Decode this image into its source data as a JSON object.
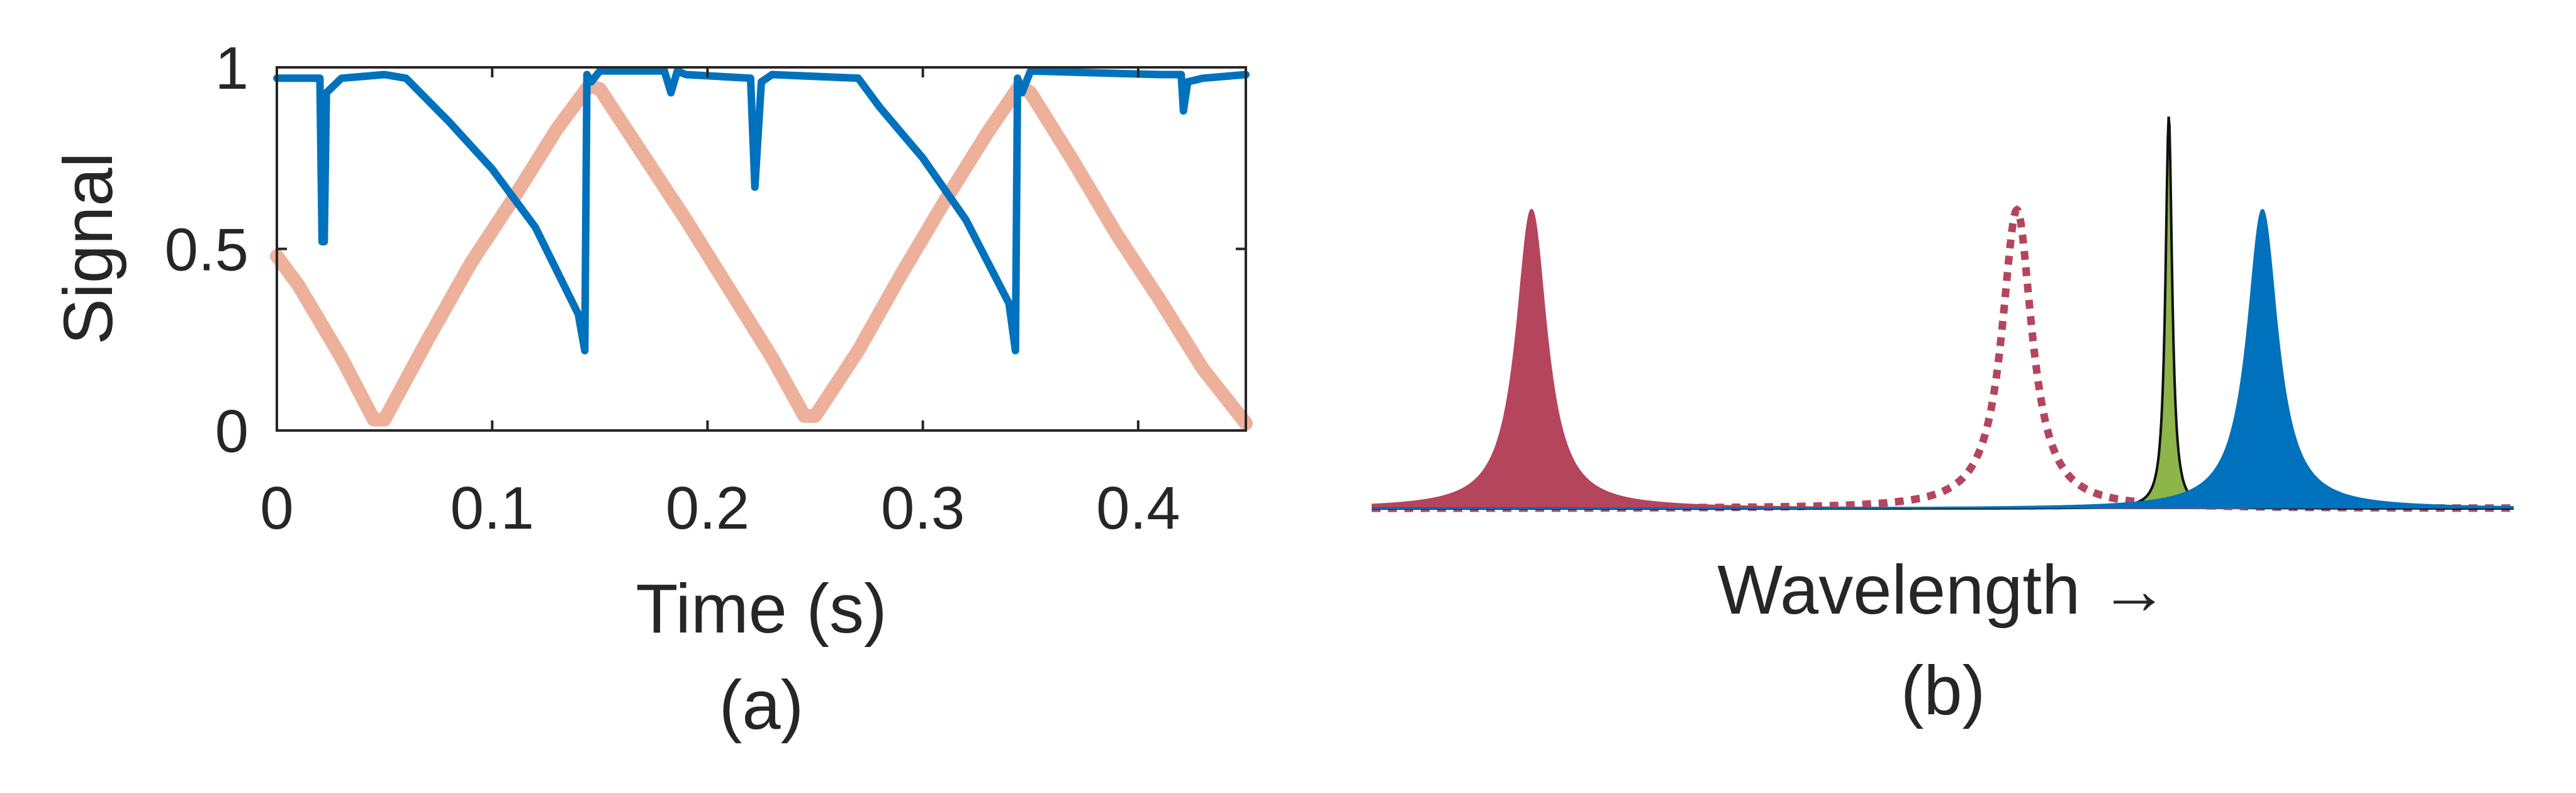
{
  "chart_data": [
    {
      "type": "line",
      "panel_label": "(a)",
      "xlabel": "Time (s)",
      "ylabel": "Signal",
      "xlim": [
        0,
        0.45
      ],
      "ylim": [
        0,
        1
      ],
      "x_ticks": [
        0,
        0.1,
        0.2,
        0.3,
        0.4
      ],
      "x_tick_labels": [
        "0",
        "0.1",
        "0.2",
        "0.3",
        "0.4"
      ],
      "y_ticks": [
        0,
        0.5,
        1
      ],
      "y_tick_labels": [
        "0",
        "0.5",
        "1"
      ],
      "grid": false,
      "legend": "none",
      "series": [
        {
          "color": "#0072BD",
          "x": [
            0,
            0.02,
            0.021,
            0.022,
            0.023,
            0.03,
            0.05,
            0.06,
            0.08,
            0.1,
            0.12,
            0.14,
            0.143,
            0.144,
            0.146,
            0.15,
            0.18,
            0.183,
            0.186,
            0.19,
            0.22,
            0.222,
            0.225,
            0.23,
            0.27,
            0.28,
            0.3,
            0.32,
            0.34,
            0.343,
            0.344,
            0.346,
            0.35,
            0.41,
            0.42,
            0.421,
            0.423,
            0.43,
            0.45
          ],
          "values": [
            0.97,
            0.97,
            0.52,
            0.52,
            0.93,
            0.97,
            0.98,
            0.97,
            0.85,
            0.72,
            0.56,
            0.32,
            0.22,
            0.98,
            0.96,
            0.99,
            0.99,
            0.93,
            0.99,
            0.98,
            0.97,
            0.67,
            0.96,
            0.98,
            0.97,
            0.89,
            0.75,
            0.58,
            0.35,
            0.22,
            0.97,
            0.93,
            0.99,
            0.98,
            0.98,
            0.88,
            0.96,
            0.97,
            0.98
          ]
        },
        {
          "color": "#EDB09A",
          "x": [
            0,
            0.01,
            0.03,
            0.045,
            0.05,
            0.07,
            0.09,
            0.11,
            0.13,
            0.145,
            0.15,
            0.17,
            0.19,
            0.21,
            0.23,
            0.245,
            0.25,
            0.27,
            0.29,
            0.31,
            0.33,
            0.345,
            0.35,
            0.37,
            0.39,
            0.41,
            0.43,
            0.45
          ],
          "values": [
            0.48,
            0.4,
            0.2,
            0.03,
            0.03,
            0.25,
            0.46,
            0.64,
            0.83,
            0.95,
            0.94,
            0.76,
            0.58,
            0.39,
            0.2,
            0.04,
            0.04,
            0.22,
            0.43,
            0.63,
            0.82,
            0.95,
            0.93,
            0.74,
            0.54,
            0.36,
            0.17,
            0.02
          ]
        }
      ]
    },
    {
      "type": "area",
      "panel_label": "(b)",
      "xlabel": "Wavelength →",
      "ylabel": "",
      "axes": "hidden",
      "x_units": "arbitrary",
      "legend": "none",
      "series": [
        {
          "style": "filled",
          "color": "#B5455C",
          "center": 0.14,
          "width": 0.016,
          "height": 0.7
        },
        {
          "style": "dotted",
          "color": "#B5455C",
          "center": 0.565,
          "width": 0.016,
          "height": 0.7
        },
        {
          "style": "filled",
          "color": "#8DB54A",
          "center": 0.698,
          "width": 0.0035,
          "height": 0.92
        },
        {
          "style": "filled",
          "color": "#0072BD",
          "center": 0.78,
          "width": 0.016,
          "height": 0.7
        }
      ]
    }
  ]
}
